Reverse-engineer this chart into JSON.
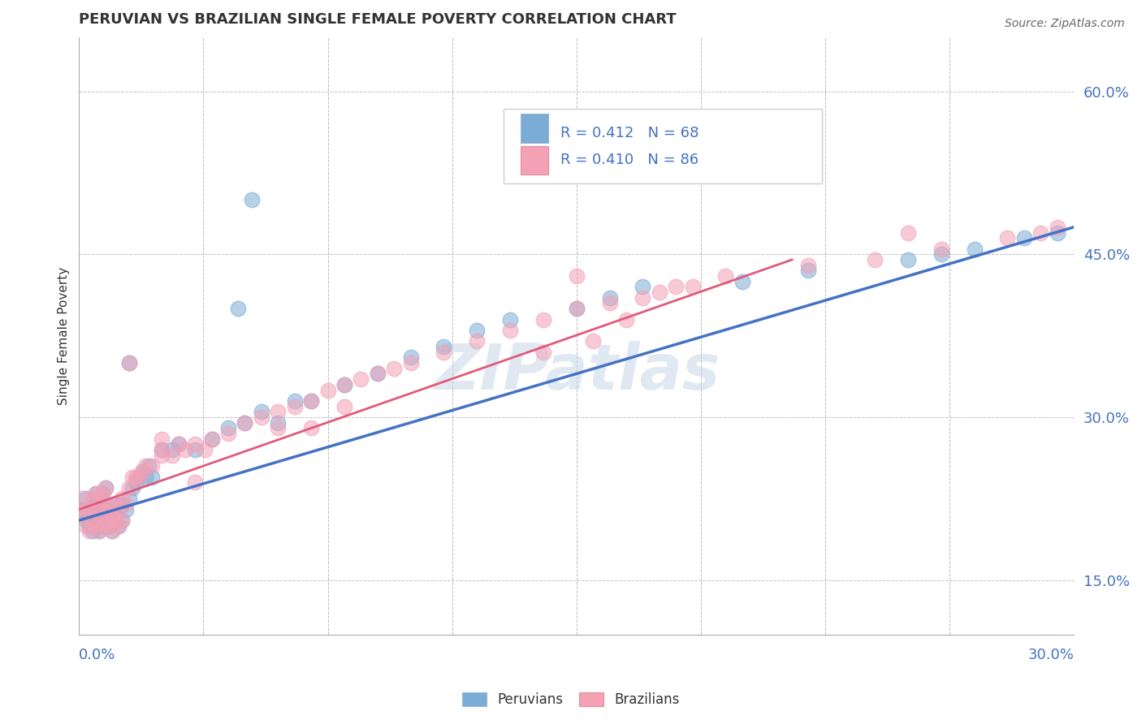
{
  "title": "PERUVIAN VS BRAZILIAN SINGLE FEMALE POVERTY CORRELATION CHART",
  "source": "Source: ZipAtlas.com",
  "ylabel": "Single Female Poverty",
  "ytick_vals": [
    0.15,
    0.3,
    0.45,
    0.6
  ],
  "xmin": 0.0,
  "xmax": 0.3,
  "ymin": 0.1,
  "ymax": 0.65,
  "watermark": "ZIPatlas",
  "blue_color": "#7aacd6",
  "pink_color": "#f4a0b5",
  "blue_line": "#4472c4",
  "pink_line": "#e05a7a",
  "peruvian_label": "Peruvians",
  "brazilian_label": "Brazilians",
  "peruvian_x": [
    0.001,
    0.002,
    0.002,
    0.003,
    0.003,
    0.004,
    0.004,
    0.005,
    0.005,
    0.005,
    0.006,
    0.006,
    0.006,
    0.007,
    0.007,
    0.007,
    0.008,
    0.008,
    0.008,
    0.009,
    0.009,
    0.01,
    0.01,
    0.011,
    0.011,
    0.012,
    0.012,
    0.013,
    0.013,
    0.014,
    0.015,
    0.015,
    0.016,
    0.017,
    0.018,
    0.019,
    0.02,
    0.021,
    0.022,
    0.025,
    0.028,
    0.03,
    0.035,
    0.04,
    0.045,
    0.05,
    0.055,
    0.06,
    0.065,
    0.07,
    0.08,
    0.09,
    0.1,
    0.11,
    0.12,
    0.13,
    0.15,
    0.16,
    0.17,
    0.2,
    0.22,
    0.25,
    0.26,
    0.27,
    0.285,
    0.295,
    0.048,
    0.052
  ],
  "peruvian_y": [
    0.215,
    0.205,
    0.225,
    0.2,
    0.21,
    0.195,
    0.215,
    0.205,
    0.22,
    0.23,
    0.195,
    0.21,
    0.225,
    0.2,
    0.215,
    0.23,
    0.205,
    0.22,
    0.235,
    0.2,
    0.215,
    0.195,
    0.21,
    0.205,
    0.22,
    0.2,
    0.215,
    0.205,
    0.22,
    0.215,
    0.225,
    0.35,
    0.235,
    0.24,
    0.245,
    0.25,
    0.245,
    0.255,
    0.245,
    0.27,
    0.27,
    0.275,
    0.27,
    0.28,
    0.29,
    0.295,
    0.305,
    0.295,
    0.315,
    0.315,
    0.33,
    0.34,
    0.355,
    0.365,
    0.38,
    0.39,
    0.4,
    0.41,
    0.42,
    0.425,
    0.435,
    0.445,
    0.45,
    0.455,
    0.465,
    0.47,
    0.4,
    0.5
  ],
  "brazilian_x": [
    0.001,
    0.001,
    0.002,
    0.002,
    0.003,
    0.003,
    0.004,
    0.004,
    0.005,
    0.005,
    0.005,
    0.006,
    0.006,
    0.006,
    0.007,
    0.007,
    0.007,
    0.008,
    0.008,
    0.008,
    0.009,
    0.009,
    0.01,
    0.01,
    0.011,
    0.011,
    0.012,
    0.012,
    0.013,
    0.013,
    0.014,
    0.015,
    0.015,
    0.016,
    0.017,
    0.018,
    0.019,
    0.02,
    0.022,
    0.025,
    0.025,
    0.028,
    0.03,
    0.032,
    0.035,
    0.038,
    0.04,
    0.045,
    0.05,
    0.055,
    0.06,
    0.065,
    0.07,
    0.075,
    0.08,
    0.085,
    0.09,
    0.095,
    0.1,
    0.11,
    0.12,
    0.13,
    0.14,
    0.15,
    0.16,
    0.17,
    0.175,
    0.18,
    0.195,
    0.22,
    0.24,
    0.26,
    0.28,
    0.29,
    0.295,
    0.14,
    0.155,
    0.165,
    0.185,
    0.06,
    0.07,
    0.08,
    0.025,
    0.035,
    0.15,
    0.25
  ],
  "brazilian_y": [
    0.21,
    0.225,
    0.2,
    0.215,
    0.195,
    0.215,
    0.205,
    0.225,
    0.2,
    0.215,
    0.23,
    0.195,
    0.21,
    0.225,
    0.2,
    0.215,
    0.23,
    0.205,
    0.22,
    0.235,
    0.2,
    0.215,
    0.195,
    0.21,
    0.205,
    0.22,
    0.2,
    0.215,
    0.205,
    0.225,
    0.22,
    0.235,
    0.35,
    0.245,
    0.245,
    0.245,
    0.25,
    0.255,
    0.255,
    0.265,
    0.27,
    0.265,
    0.275,
    0.27,
    0.275,
    0.27,
    0.28,
    0.285,
    0.295,
    0.3,
    0.305,
    0.31,
    0.315,
    0.325,
    0.33,
    0.335,
    0.34,
    0.345,
    0.35,
    0.36,
    0.37,
    0.38,
    0.39,
    0.4,
    0.405,
    0.41,
    0.415,
    0.42,
    0.43,
    0.44,
    0.445,
    0.455,
    0.465,
    0.47,
    0.475,
    0.36,
    0.37,
    0.39,
    0.42,
    0.29,
    0.29,
    0.31,
    0.28,
    0.24,
    0.43,
    0.47
  ]
}
